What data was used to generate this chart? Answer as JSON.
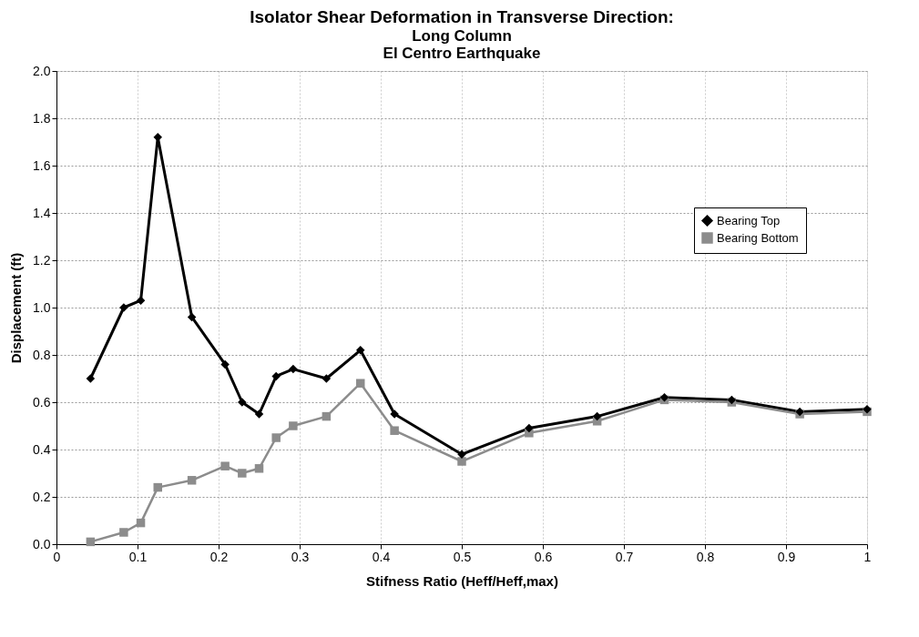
{
  "chart_data": {
    "type": "line",
    "title": "Isolator Shear Deformation in Transverse Direction:",
    "subtitle": [
      "Long Column",
      "El Centro Earthquake"
    ],
    "xlabel": "Stifness Ratio (Heff/Heff,max)",
    "ylabel": "Displacement (ft)",
    "x": [
      0.042,
      0.083,
      0.104,
      0.125,
      0.167,
      0.208,
      0.229,
      0.25,
      0.271,
      0.292,
      0.333,
      0.375,
      0.417,
      0.5,
      0.583,
      0.667,
      0.75,
      0.833,
      0.917,
      1
    ],
    "series": [
      {
        "name": "Bearing Top",
        "color": "#000000",
        "marker": "diamond",
        "values": [
          0.7,
          1.0,
          1.03,
          1.72,
          0.96,
          0.76,
          0.6,
          0.55,
          0.71,
          0.74,
          0.7,
          0.82,
          0.55,
          0.38,
          0.49,
          0.54,
          0.62,
          0.61,
          0.56,
          0.57
        ]
      },
      {
        "name": "Bearing Bottom",
        "color": "#8c8c8c",
        "marker": "square",
        "values": [
          0.01,
          0.05,
          0.09,
          0.24,
          0.27,
          0.33,
          0.3,
          0.32,
          0.45,
          0.5,
          0.54,
          0.68,
          0.48,
          0.35,
          0.47,
          0.52,
          0.61,
          0.6,
          0.55,
          0.56
        ]
      }
    ],
    "xlim": [
      0,
      1
    ],
    "xticks": [
      0,
      0.1,
      0.2,
      0.3,
      0.4,
      0.5,
      0.6,
      0.7,
      0.8,
      0.9,
      1
    ],
    "ylim": [
      0,
      2
    ],
    "yticks": [
      {
        "value": 0,
        "label": "0.0"
      },
      {
        "value": 0.2,
        "label": "0.2"
      },
      {
        "value": 0.4,
        "label": "0.4"
      },
      {
        "value": 0.6,
        "label": "0.6"
      },
      {
        "value": 0.8,
        "label": "0.8"
      },
      {
        "value": 1,
        "label": "1.0"
      },
      {
        "value": 1.2,
        "label": "1.2"
      },
      {
        "value": 1.4,
        "label": "1.4"
      },
      {
        "value": 1.6,
        "label": "1.6"
      },
      {
        "value": 1.8,
        "label": "1.8"
      },
      {
        "value": 2,
        "label": "2.0"
      }
    ],
    "grid": true,
    "legend": "right",
    "line_style": "solid"
  }
}
